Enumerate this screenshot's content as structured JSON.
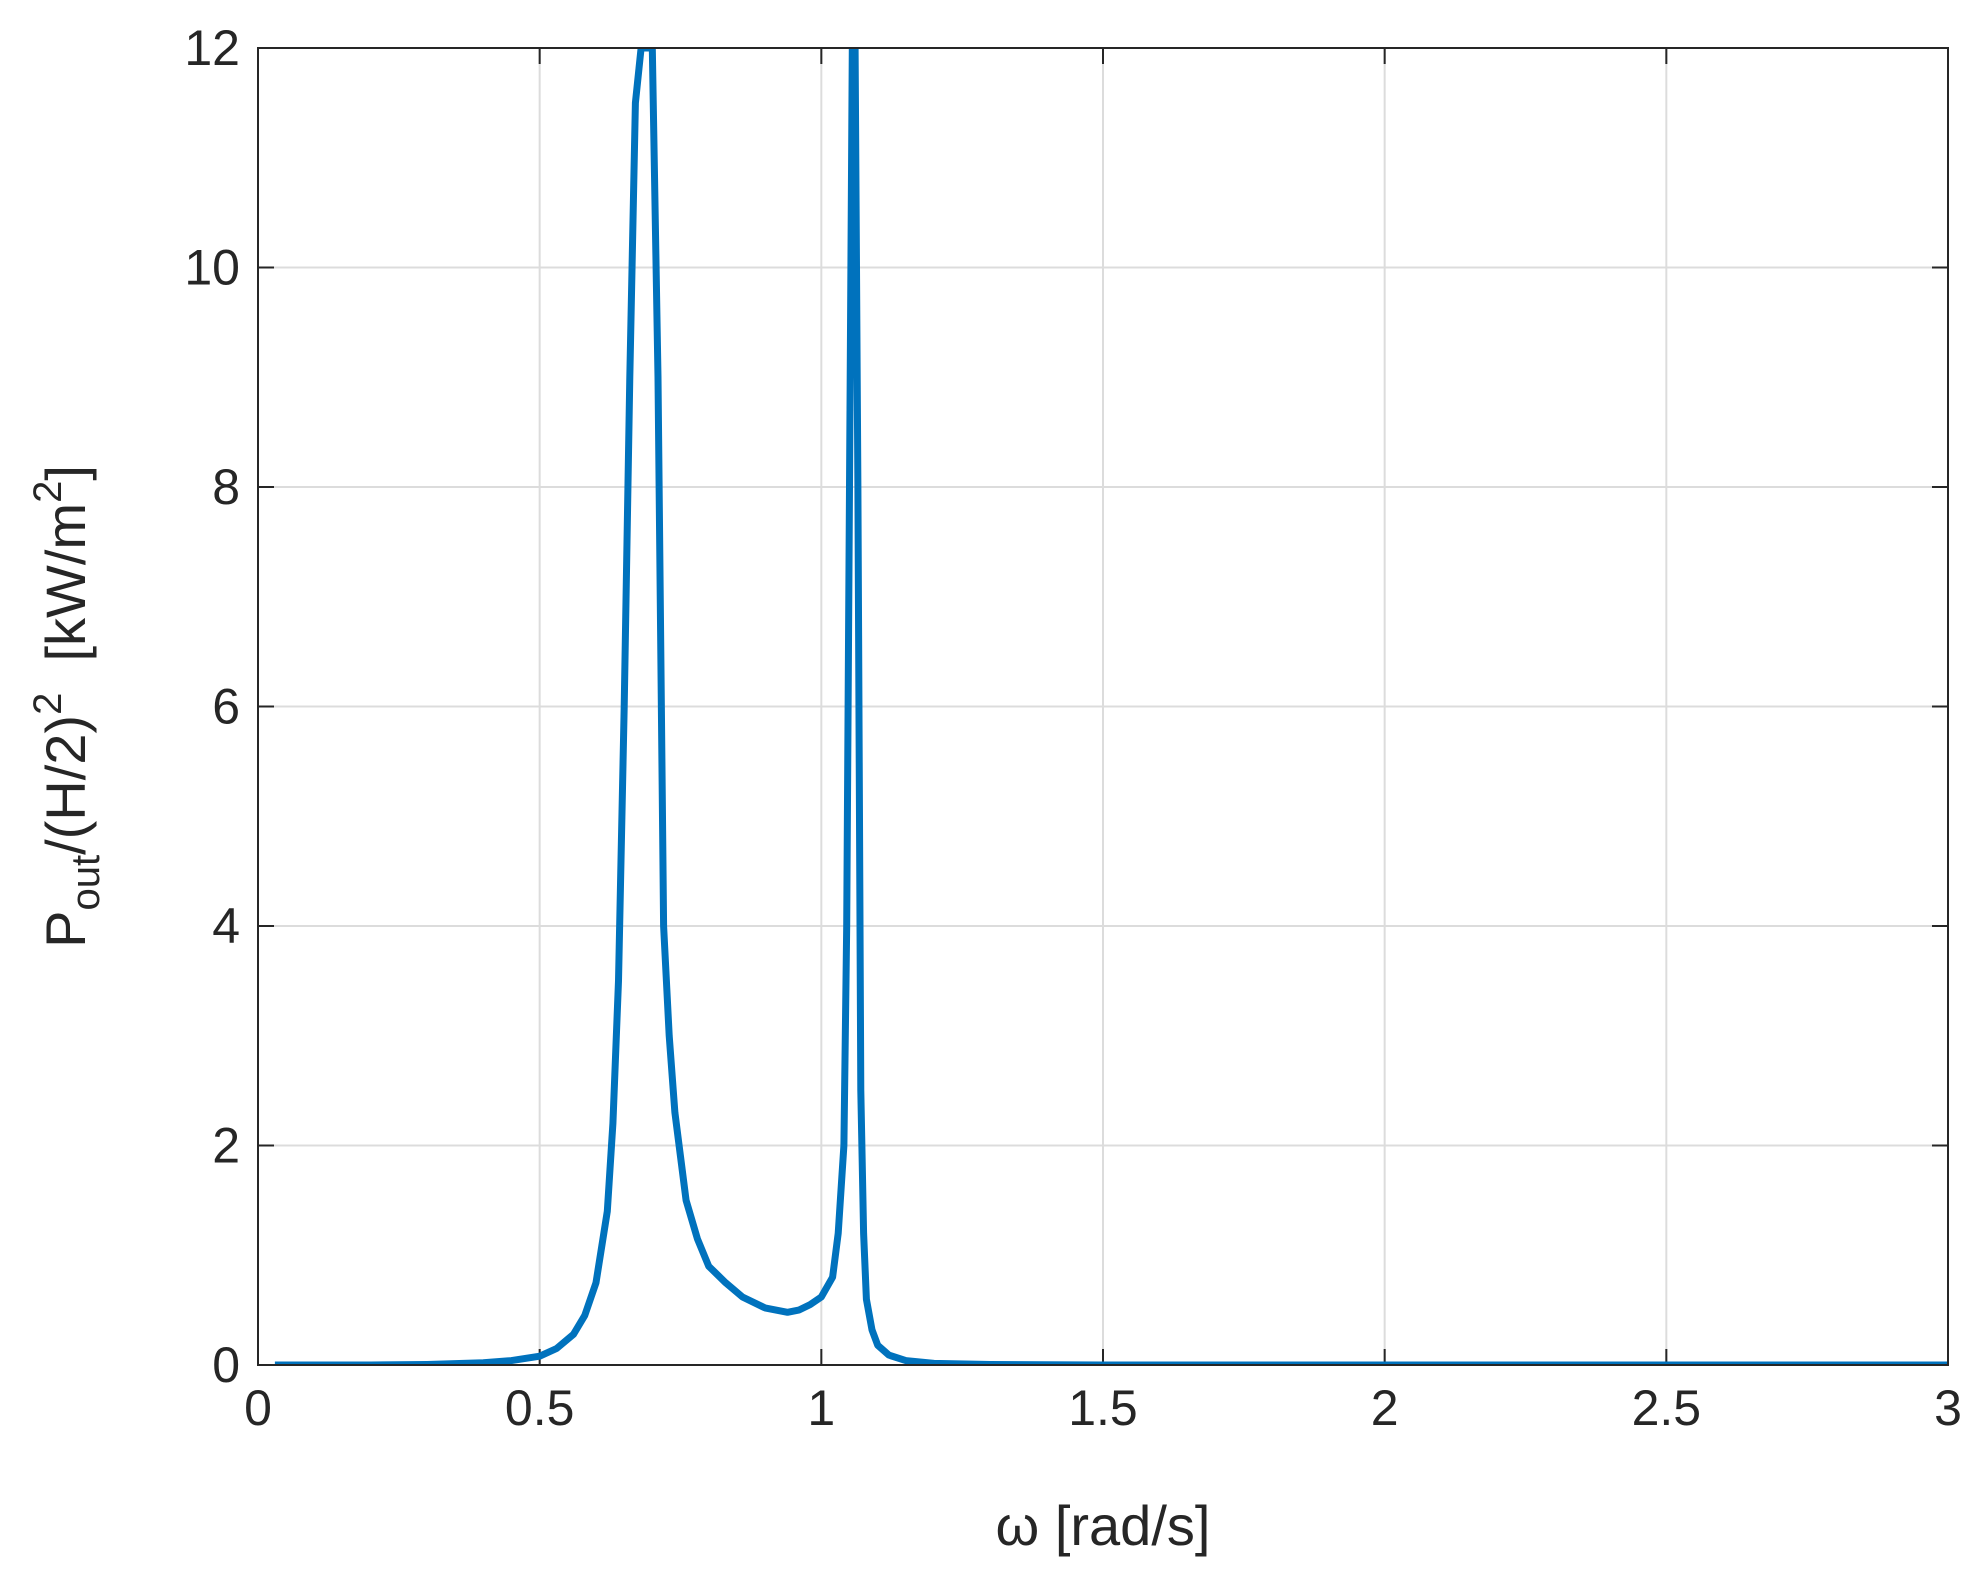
{
  "chart_data": {
    "type": "line",
    "xlabel": "ω  [rad/s]",
    "ylabel": {
      "base": "P",
      "sub": "out",
      "mid": "/(H/2)",
      "sup1": "2",
      "unit": "  [kW/m",
      "sup2": "2",
      "close": "]"
    },
    "xlim": [
      0,
      3
    ],
    "ylim": [
      0,
      12
    ],
    "xticks": [
      "0",
      "0.5",
      "1",
      "1.5",
      "2",
      "2.5",
      "3"
    ],
    "yticks": [
      "0",
      "2",
      "4",
      "6",
      "8",
      "10",
      "12"
    ],
    "grid": true,
    "line_color": "#0072BD",
    "series": [
      {
        "x": [
          0.03,
          0.2,
          0.3,
          0.4,
          0.45,
          0.5,
          0.53,
          0.56,
          0.58,
          0.6,
          0.62,
          0.63,
          0.64,
          0.65,
          0.66,
          0.67,
          0.68,
          0.69,
          0.7,
          0.71,
          0.72,
          0.73,
          0.74,
          0.75,
          0.76,
          0.78,
          0.8,
          0.83,
          0.86,
          0.9,
          0.94,
          0.96,
          0.98,
          1.0,
          1.02,
          1.03,
          1.04,
          1.045,
          1.05,
          1.055,
          1.06,
          1.065,
          1.07,
          1.075,
          1.08,
          1.09,
          1.1,
          1.12,
          1.15,
          1.2,
          1.3,
          1.5,
          2.0,
          2.5,
          3.0
        ],
        "y": [
          0.0,
          0.0,
          0.005,
          0.02,
          0.04,
          0.08,
          0.15,
          0.28,
          0.45,
          0.75,
          1.4,
          2.2,
          3.5,
          6.0,
          9.0,
          11.5,
          12.0,
          12.0,
          12.0,
          9.0,
          4.0,
          3.0,
          2.3,
          1.9,
          1.5,
          1.15,
          0.9,
          0.75,
          0.62,
          0.52,
          0.48,
          0.5,
          0.55,
          0.62,
          0.8,
          1.2,
          2.0,
          4.0,
          8.0,
          12.0,
          12.0,
          8.0,
          2.5,
          1.2,
          0.6,
          0.32,
          0.18,
          0.09,
          0.04,
          0.015,
          0.005,
          0.0,
          0.0,
          0.0,
          0.0
        ]
      }
    ]
  }
}
